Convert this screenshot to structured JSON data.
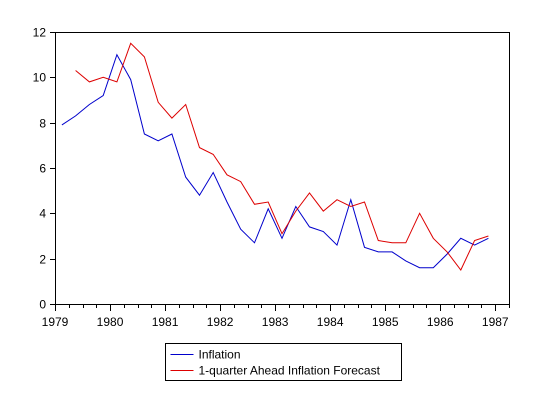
{
  "chart_data": {
    "type": "line",
    "title": "",
    "xlabel": "",
    "ylabel": "",
    "xlim": [
      1979,
      1987.25
    ],
    "ylim": [
      0,
      12
    ],
    "grid": false,
    "legend_position": "bottom-center",
    "x_ticks": [
      {
        "value": 1979,
        "label": "1979"
      },
      {
        "value": 1980,
        "label": "1980"
      },
      {
        "value": 1981,
        "label": "1981"
      },
      {
        "value": 1982,
        "label": "1982"
      },
      {
        "value": 1983,
        "label": "1983"
      },
      {
        "value": 1984,
        "label": "1984"
      },
      {
        "value": 1985,
        "label": "1985"
      },
      {
        "value": 1986,
        "label": "1986"
      },
      {
        "value": 1987,
        "label": "1987"
      }
    ],
    "y_ticks": [
      {
        "value": 0,
        "label": "0"
      },
      {
        "value": 2,
        "label": "2"
      },
      {
        "value": 4,
        "label": "4"
      },
      {
        "value": 6,
        "label": "6"
      },
      {
        "value": 8,
        "label": "8"
      },
      {
        "value": 10,
        "label": "10"
      },
      {
        "value": 12,
        "label": "12"
      }
    ],
    "series": [
      {
        "name": "Inflation",
        "color": "#0000cc",
        "points": [
          [
            1979.125,
            7.9
          ],
          [
            1979.375,
            8.3
          ],
          [
            1979.625,
            8.8
          ],
          [
            1979.875,
            9.2
          ],
          [
            1980.125,
            11.0
          ],
          [
            1980.375,
            9.9
          ],
          [
            1980.625,
            7.5
          ],
          [
            1980.875,
            7.2
          ],
          [
            1981.125,
            7.5
          ],
          [
            1981.375,
            5.6
          ],
          [
            1981.625,
            4.8
          ],
          [
            1981.875,
            5.8
          ],
          [
            1982.125,
            4.5
          ],
          [
            1982.375,
            3.3
          ],
          [
            1982.625,
            2.7
          ],
          [
            1982.875,
            4.2
          ],
          [
            1983.125,
            2.9
          ],
          [
            1983.375,
            4.3
          ],
          [
            1983.625,
            3.4
          ],
          [
            1983.875,
            3.2
          ],
          [
            1984.125,
            2.6
          ],
          [
            1984.375,
            4.6
          ],
          [
            1984.625,
            2.5
          ],
          [
            1984.875,
            2.3
          ],
          [
            1985.125,
            2.3
          ],
          [
            1985.375,
            1.9
          ],
          [
            1985.625,
            1.6
          ],
          [
            1985.875,
            1.6
          ],
          [
            1986.125,
            2.2
          ],
          [
            1986.375,
            2.9
          ],
          [
            1986.625,
            2.6
          ],
          [
            1986.875,
            2.9
          ]
        ]
      },
      {
        "name": "1-quarter Ahead Inflation Forecast",
        "color": "#dd0000",
        "points": [
          [
            1979.375,
            10.3
          ],
          [
            1979.625,
            9.8
          ],
          [
            1979.875,
            10.0
          ],
          [
            1980.125,
            9.8
          ],
          [
            1980.375,
            11.5
          ],
          [
            1980.625,
            10.9
          ],
          [
            1980.875,
            8.9
          ],
          [
            1981.125,
            8.2
          ],
          [
            1981.375,
            8.8
          ],
          [
            1981.625,
            6.9
          ],
          [
            1981.875,
            6.6
          ],
          [
            1982.125,
            5.7
          ],
          [
            1982.375,
            5.4
          ],
          [
            1982.625,
            4.4
          ],
          [
            1982.875,
            4.5
          ],
          [
            1983.125,
            3.1
          ],
          [
            1983.375,
            4.1
          ],
          [
            1983.625,
            4.9
          ],
          [
            1983.875,
            4.1
          ],
          [
            1984.125,
            4.6
          ],
          [
            1984.375,
            4.3
          ],
          [
            1984.625,
            4.5
          ],
          [
            1984.875,
            2.8
          ],
          [
            1985.125,
            2.7
          ],
          [
            1985.375,
            2.7
          ],
          [
            1985.625,
            4.0
          ],
          [
            1985.875,
            2.9
          ],
          [
            1986.125,
            2.3
          ],
          [
            1986.375,
            1.5
          ],
          [
            1986.625,
            2.8
          ],
          [
            1986.875,
            3.0
          ]
        ]
      }
    ]
  }
}
